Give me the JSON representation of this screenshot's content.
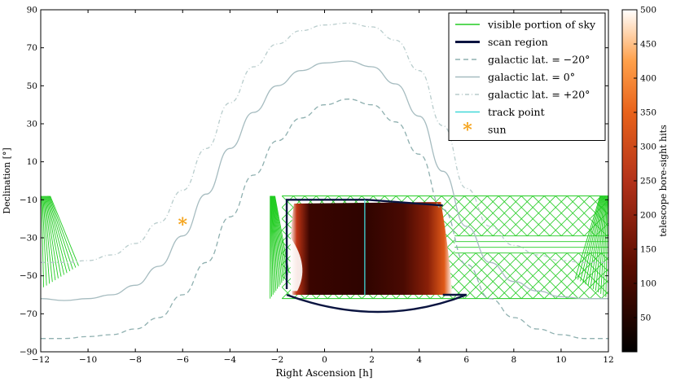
{
  "chart_data": {
    "type": "line",
    "xlabel": "Right Ascension [h]",
    "ylabel": "Declination [°]",
    "xlim": [
      -12,
      12
    ],
    "ylim": [
      -90,
      90
    ],
    "x_ticks": [
      -12,
      -10,
      -8,
      -6,
      -4,
      -2,
      0,
      2,
      4,
      6,
      8,
      10,
      12
    ],
    "x_tick_labels": [
      "−12",
      "−10",
      "−8",
      "−6",
      "−4",
      "−2",
      "0",
      "2",
      "4",
      "6",
      "8",
      "10",
      "12"
    ],
    "y_ticks": [
      -90,
      -70,
      -50,
      -30,
      -10,
      10,
      30,
      50,
      70,
      90
    ],
    "y_tick_labels": [
      "−90",
      "−70",
      "−50",
      "−30",
      "−10",
      "10",
      "30",
      "50",
      "70",
      "90"
    ],
    "grid": false,
    "legend_position": "top-right",
    "series": [
      {
        "name": "galactic lat. = −20°",
        "style": "dashed",
        "color": "#8fb0b0",
        "x": [
          -12,
          -11,
          -10,
          -9,
          -8,
          -7,
          -6,
          -5,
          -4,
          -3,
          -2,
          -1,
          0,
          1,
          2,
          3,
          4,
          5,
          6,
          7,
          8,
          9,
          10,
          11,
          12
        ],
        "y": [
          -83,
          -83,
          -82,
          -81,
          -78,
          -72,
          -60,
          -43,
          -19,
          3,
          21,
          33,
          40,
          43,
          40,
          31,
          14,
          -15,
          -44,
          -62,
          -72,
          -78,
          -81,
          -83,
          -83
        ]
      },
      {
        "name": "galactic lat. = 0°",
        "style": "solid",
        "color": "#a6bcc0",
        "x": [
          -12,
          -11,
          -10,
          -9,
          -8,
          -7,
          -6,
          -5,
          -4,
          -3,
          -2,
          -1,
          0,
          1,
          2,
          3,
          4,
          5,
          6,
          7,
          8,
          9,
          10,
          11,
          12
        ],
        "y": [
          -62,
          -63,
          -62,
          -60,
          -55,
          -45,
          -29,
          -7,
          17,
          36,
          50,
          58,
          62,
          63,
          60,
          51,
          34,
          5,
          -24,
          -43,
          -53,
          -58,
          -61,
          -62,
          -62
        ]
      },
      {
        "name": "galactic lat. = +20°",
        "style": "dashdot",
        "color": "#b8cccc",
        "x": [
          -12,
          -11,
          -10,
          -9,
          -8,
          -7,
          -6,
          -5,
          -4,
          -3,
          -2,
          -1,
          0,
          1,
          2,
          3,
          4,
          5,
          6,
          7,
          8,
          9,
          10,
          11,
          12
        ],
        "y": [
          -43,
          -43,
          -42,
          -39,
          -33,
          -22,
          -5,
          17,
          41,
          60,
          72,
          79,
          82,
          83,
          81,
          74,
          58,
          29,
          -4,
          -24,
          -34,
          -39,
          -42,
          -43,
          -43
        ]
      },
      {
        "name": "scan region",
        "style": "solid",
        "color": "#0a1440",
        "x": [
          -1.6,
          -1.6,
          1.8,
          5.0,
          5.0,
          6.0,
          2.3,
          -1.6
        ],
        "y": [
          -57,
          -10,
          -10,
          -13,
          -60,
          -60,
          -72,
          -60
        ]
      },
      {
        "name": "track point",
        "style": "solid",
        "color": "#40d8d8",
        "x": [
          1.7,
          1.7
        ],
        "y": [
          -10,
          -60
        ]
      }
    ],
    "sun": {
      "name": "sun",
      "x": -6.0,
      "y": -23,
      "color": "#f5a41c"
    },
    "visible_sky": {
      "name": "visible portion of sky",
      "color": "#22cc22",
      "band_main": {
        "x": [
          -1.8,
          12
        ],
        "y": [
          -8,
          -62
        ]
      },
      "band_gap": {
        "x": [
          5.5,
          12
        ],
        "y": [
          -29,
          -38
        ]
      },
      "left_fringe": {
        "x": [
          -12,
          -10.4
        ],
        "y": [
          -8,
          -57
        ]
      },
      "right_fringe": {
        "x": [
          10.6,
          12
        ],
        "y": [
          -8,
          -62
        ]
      },
      "left_edge_fringe": {
        "x": [
          -2.3,
          -1.5
        ],
        "y": [
          -8,
          -62
        ]
      }
    },
    "heatmap": {
      "x": [
        -1.5,
        5.4
      ],
      "y": [
        -12,
        -60
      ],
      "colormap": "gist_heat",
      "colorbar_label": "telescope bore-sight hits",
      "colorbar_range": [
        0,
        500
      ],
      "colorbar_ticks": [
        50,
        100,
        150,
        200,
        250,
        300,
        350,
        400,
        450,
        500
      ]
    },
    "legend": [
      {
        "label": "visible portion of sky",
        "kind": "line",
        "color": "#22cc22",
        "dash": ""
      },
      {
        "label": "scan region",
        "kind": "line",
        "color": "#0a1440",
        "dash": "",
        "width": 3
      },
      {
        "label": "galactic lat. = −20°",
        "kind": "line",
        "color": "#8fb0b0",
        "dash": "6,4"
      },
      {
        "label": "galactic lat. = 0°",
        "kind": "line",
        "color": "#a6bcc0",
        "dash": ""
      },
      {
        "label": "galactic lat. = +20°",
        "kind": "line",
        "color": "#b8cccc",
        "dash": "5,3,1,3"
      },
      {
        "label": "track point",
        "kind": "line",
        "color": "#40d8d8",
        "dash": ""
      },
      {
        "label": "sun",
        "kind": "star",
        "color": "#f5a41c"
      }
    ]
  }
}
